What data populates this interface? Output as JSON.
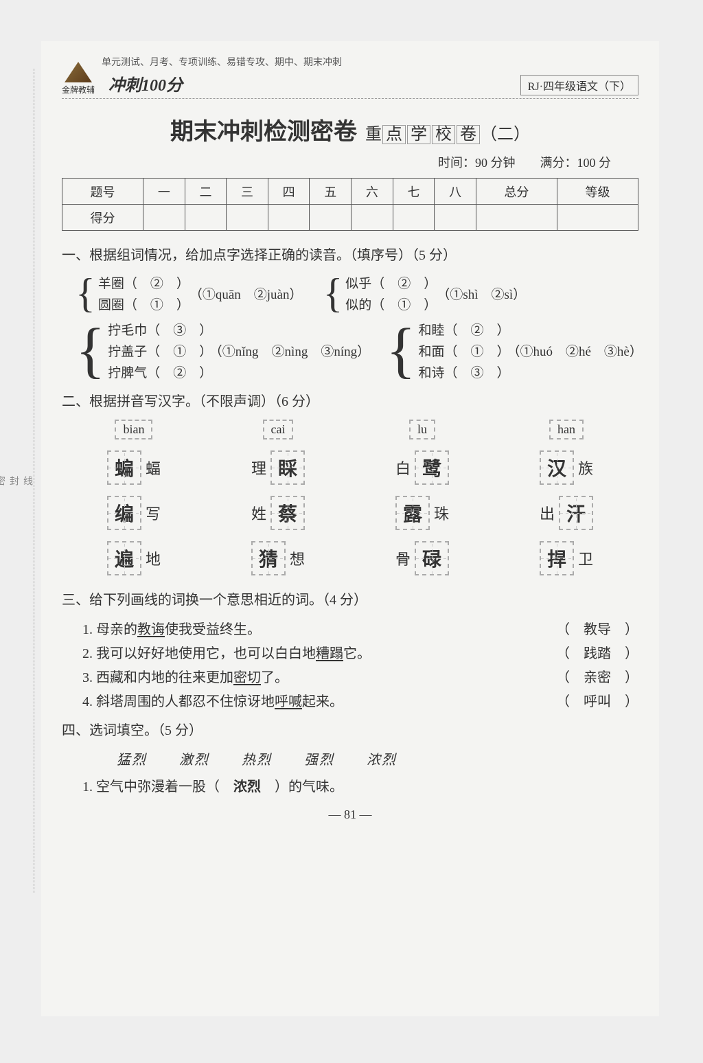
{
  "header": {
    "logo_text": "金牌教辅",
    "sub": "单元测试、月考、专项训练、易错专攻、期中、期末冲刺",
    "badge": "RJ·四年级语文（下）",
    "chongci": "冲刺100分"
  },
  "title": {
    "main": "期末冲刺检测密卷",
    "sub_prefix": "重",
    "sub_chars": [
      "点",
      "学",
      "校",
      "卷"
    ],
    "sub_suffix": "（二）"
  },
  "time_row": "时间：90 分钟　　满分：100 分",
  "score_table": {
    "headers": [
      "题号",
      "一",
      "二",
      "三",
      "四",
      "五",
      "六",
      "七",
      "八",
      "总分",
      "等级"
    ],
    "row2_label": "得分"
  },
  "side_labels": [
    "线",
    "封",
    "密"
  ],
  "q1": {
    "heading": "一、根据组词情况，给加点字选择正确的读音。（填序号）（5 分）",
    "g1": {
      "items": [
        "羊圈（　②　）",
        "圆圈（　①　）"
      ],
      "opts": "（①quān　②juàn）"
    },
    "g2": {
      "items": [
        "似乎（　②　）",
        "似的（　①　）"
      ],
      "opts": "（①shì　②sì）"
    },
    "g3": {
      "items": [
        "拧毛巾（　③　）",
        "拧盖子（　①　）",
        "拧脾气（　②　）"
      ],
      "opts": "（①nǐng　②nìng　③níng）"
    },
    "g4": {
      "items": [
        "和睦（　②　）",
        "和面（　①　）",
        "和诗（　③　）"
      ],
      "opts": "（①huó　②hé　③hè）"
    }
  },
  "q2": {
    "heading": "二、根据拼音写汉字。（不限声调）（6 分）",
    "cols": [
      {
        "pinyin": "bian",
        "rows": [
          [
            "蝙",
            "蝠"
          ],
          [
            "编",
            "写"
          ],
          [
            "遍",
            "地"
          ]
        ]
      },
      {
        "pinyin": "cai",
        "rows": [
          [
            "睬",
            "理",
            true
          ],
          [
            "蔡",
            "姓",
            true
          ],
          [
            "猜",
            "想"
          ]
        ]
      },
      {
        "pinyin": "lu",
        "rows": [
          [
            "鹭",
            "白",
            true
          ],
          [
            "露",
            "珠"
          ],
          [
            "碌",
            "骨",
            true
          ]
        ]
      },
      {
        "pinyin": "han",
        "rows": [
          [
            "汉",
            "族"
          ],
          [
            "汗",
            "出",
            true
          ],
          [
            "捍",
            "卫"
          ]
        ]
      }
    ]
  },
  "q3": {
    "heading": "三、给下列画线的词换一个意思相近的词。（4 分）",
    "lines": [
      {
        "n": "1.",
        "pre": "母亲的",
        "u": "教诲",
        "post": "使我受益终生。",
        "ans": "教导"
      },
      {
        "n": "2.",
        "pre": "我可以好好地使用它，也可以白白地",
        "u": "糟蹋",
        "post": "它。",
        "ans": "践踏"
      },
      {
        "n": "3.",
        "pre": "西藏和内地的往来更加",
        "u": "密切",
        "post": "了。",
        "ans": "亲密"
      },
      {
        "n": "4.",
        "pre": "斜塔周围的人都忍不住惊讶地",
        "u": "呼喊",
        "post": "起来。",
        "ans": "呼叫"
      }
    ]
  },
  "q4": {
    "heading": "四、选词填空。（5 分）",
    "words": "猛烈 激烈 热烈 强烈 浓烈",
    "line1_pre": "1. 空气中弥漫着一股（　",
    "line1_ans": "浓烈",
    "line1_post": "　）的气味。"
  },
  "page_num": "— 81 —"
}
